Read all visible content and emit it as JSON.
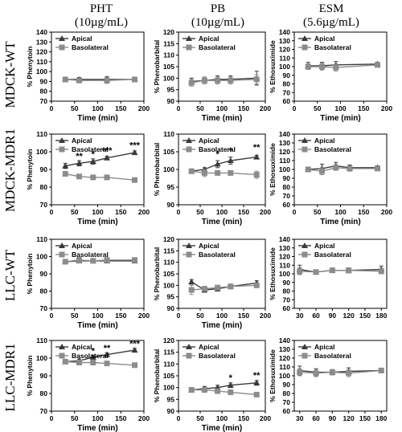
{
  "colors": {
    "apical": "#3a3a3a",
    "basolateral": "#8c8c8c",
    "axis": "#000000"
  },
  "columns": [
    {
      "drug": "PHT",
      "conc": "(10µg/mL)"
    },
    {
      "drug": "PB",
      "conc": "(10µg/mL)"
    },
    {
      "drug": "ESM",
      "conc": "(5.6µg/mL)"
    }
  ],
  "rows": [
    "MDCK-WT",
    "MDCK-MDR1",
    "LLC-WT",
    "LLC-MDR1"
  ],
  "chart_data": [
    {
      "type": "line",
      "row": 0,
      "col": 0,
      "ylabel": "% Phenytoin",
      "xlabel": "Time (min)",
      "xlim": [
        0,
        200
      ],
      "ylim": [
        70,
        140
      ],
      "xticks": [
        0,
        50,
        100,
        150,
        200
      ],
      "yticks": [
        70,
        80,
        90,
        100,
        110,
        120,
        130,
        140
      ],
      "legend": "top-left",
      "series": [
        {
          "name": "Apical",
          "marker": "triangle",
          "x": [
            30,
            60,
            120,
            180
          ],
          "y": [
            92,
            92,
            92,
            92
          ],
          "err": [
            2,
            2,
            3,
            1.5
          ]
        },
        {
          "name": "Basolateral",
          "marker": "square",
          "x": [
            30,
            60,
            120,
            180
          ],
          "y": [
            92,
            91,
            91,
            92
          ],
          "err": [
            2,
            2,
            3,
            1
          ]
        }
      ],
      "annotations": []
    },
    {
      "type": "line",
      "row": 0,
      "col": 1,
      "ylabel": "% Phenobarbital",
      "xlabel": "Time (min)",
      "xlim": [
        0,
        200
      ],
      "ylim": [
        90,
        120
      ],
      "xticks": [
        0,
        50,
        100,
        150,
        200
      ],
      "yticks": [
        90,
        95,
        100,
        105,
        110,
        115,
        120
      ],
      "legend": "top-left",
      "series": [
        {
          "name": "Apical",
          "marker": "triangle",
          "x": [
            30,
            60,
            90,
            120,
            180
          ],
          "y": [
            98.5,
            99,
            99.5,
            99.5,
            100
          ],
          "err": [
            1.5,
            1.5,
            1.5,
            1.5,
            3
          ]
        },
        {
          "name": "Basolateral",
          "marker": "square",
          "x": [
            30,
            60,
            90,
            120,
            180
          ],
          "y": [
            98,
            99,
            99,
            99,
            99.5
          ],
          "err": [
            1.5,
            1.5,
            1.5,
            1.5,
            2
          ]
        }
      ],
      "annotations": []
    },
    {
      "type": "line",
      "row": 0,
      "col": 2,
      "ylabel": "% Ethosuximide",
      "xlabel": "Time (min)",
      "xlim": [
        0,
        200
      ],
      "ylim": [
        60,
        140
      ],
      "xticks": [
        0,
        50,
        100,
        150,
        200
      ],
      "yticks": [
        60,
        70,
        80,
        90,
        100,
        110,
        120,
        130,
        140
      ],
      "legend": "top-left",
      "series": [
        {
          "name": "Apical",
          "marker": "triangle",
          "x": [
            30,
            60,
            90,
            180
          ],
          "y": [
            101,
            101,
            102,
            103
          ],
          "err": [
            4,
            4,
            4,
            2
          ]
        },
        {
          "name": "Basolateral",
          "marker": "square",
          "x": [
            30,
            60,
            90,
            180
          ],
          "y": [
            100,
            100,
            99,
            102
          ],
          "err": [
            3,
            4,
            4,
            2
          ]
        }
      ],
      "annotations": []
    },
    {
      "type": "line",
      "row": 1,
      "col": 0,
      "ylabel": "% Phenytoin",
      "xlabel": "Time (min)",
      "xlim": [
        0,
        200
      ],
      "ylim": [
        70,
        110
      ],
      "xticks": [
        0,
        50,
        100,
        150,
        200
      ],
      "yticks": [
        70,
        80,
        90,
        100,
        110
      ],
      "legend": "top-left",
      "series": [
        {
          "name": "Apical",
          "marker": "triangle",
          "x": [
            30,
            60,
            90,
            120,
            180
          ],
          "y": [
            92,
            93.5,
            94.5,
            96.5,
            99.5
          ],
          "err": [
            1.5,
            1.5,
            1.5,
            1,
            1
          ]
        },
        {
          "name": "Basolateral",
          "marker": "square",
          "x": [
            30,
            60,
            90,
            120,
            180
          ],
          "y": [
            87.5,
            86,
            85.5,
            85.5,
            84
          ],
          "err": [
            1,
            0.5,
            0.5,
            0.5,
            1
          ]
        }
      ],
      "annotations": [
        {
          "x": 60,
          "y": 96,
          "text": "**"
        },
        {
          "x": 90,
          "y": 97,
          "text": "*"
        },
        {
          "x": 120,
          "y": 99,
          "text": "***"
        },
        {
          "x": 180,
          "y": 102,
          "text": "***"
        }
      ]
    },
    {
      "type": "line",
      "row": 1,
      "col": 1,
      "ylabel": "% Phenobarbital",
      "xlabel": "Time (min)",
      "xlim": [
        0,
        200
      ],
      "ylim": [
        90,
        110
      ],
      "xticks": [
        0,
        50,
        100,
        150,
        200
      ],
      "yticks": [
        90,
        95,
        100,
        105,
        110
      ],
      "legend": "top-left",
      "series": [
        {
          "name": "Apical",
          "marker": "triangle",
          "x": [
            30,
            60,
            90,
            120,
            180
          ],
          "y": [
            99.5,
            100,
            101.5,
            102.5,
            103.5
          ],
          "err": [
            0.5,
            0.5,
            1,
            1,
            0.5
          ]
        },
        {
          "name": "Basolateral",
          "marker": "square",
          "x": [
            30,
            60,
            90,
            120,
            180
          ],
          "y": [
            99.5,
            99,
            99,
            99,
            98.5
          ],
          "err": [
            0.5,
            1,
            0.5,
            0.5,
            1
          ]
        }
      ],
      "annotations": [
        {
          "x": 90,
          "y": 103.5,
          "text": "*"
        },
        {
          "x": 120,
          "y": 104.5,
          "text": "*"
        },
        {
          "x": 180,
          "y": 105.5,
          "text": "**"
        }
      ]
    },
    {
      "type": "line",
      "row": 1,
      "col": 2,
      "ylabel": "% Ethosuximide",
      "xlabel": "Time (min)",
      "xlim": [
        0,
        200
      ],
      "ylim": [
        60,
        140
      ],
      "xticks": [
        0,
        50,
        100,
        150,
        200
      ],
      "yticks": [
        60,
        70,
        80,
        90,
        100,
        110,
        120,
        130,
        140
      ],
      "legend": "top-left",
      "series": [
        {
          "name": "Apical",
          "marker": "triangle",
          "x": [
            30,
            60,
            90,
            120,
            180
          ],
          "y": [
            100,
            101,
            104,
            102,
            102
          ],
          "err": [
            2,
            5,
            4,
            3,
            2
          ]
        },
        {
          "name": "Basolateral",
          "marker": "square",
          "x": [
            30,
            60,
            90,
            120,
            180
          ],
          "y": [
            100,
            98,
            102,
            101,
            101
          ],
          "err": [
            2,
            4,
            3,
            3,
            2
          ]
        }
      ],
      "annotations": []
    },
    {
      "type": "line",
      "row": 2,
      "col": 0,
      "ylabel": "% Phenytoin",
      "xlabel": "Time (min)",
      "xlim": [
        0,
        200
      ],
      "ylim": [
        70,
        110
      ],
      "xticks": [
        0,
        50,
        100,
        150,
        200
      ],
      "yticks": [
        70,
        80,
        90,
        100,
        110
      ],
      "legend": "top-left",
      "series": [
        {
          "name": "Apical",
          "marker": "triangle",
          "x": [
            30,
            60,
            90,
            120,
            180
          ],
          "y": [
            97,
            97.5,
            97.5,
            97.5,
            97.5
          ],
          "err": [
            1,
            1,
            1,
            1,
            1
          ]
        },
        {
          "name": "Basolateral",
          "marker": "square",
          "x": [
            30,
            60,
            90,
            120,
            180
          ],
          "y": [
            97,
            98,
            97.5,
            98,
            98
          ],
          "err": [
            1,
            1.5,
            1,
            1,
            1
          ]
        }
      ],
      "annotations": []
    },
    {
      "type": "line",
      "row": 2,
      "col": 1,
      "ylabel": "% Phenobarbital",
      "xlabel": "Time (min)",
      "xlim": [
        0,
        200
      ],
      "ylim": [
        90,
        120
      ],
      "xticks": [
        0,
        50,
        100,
        150,
        200
      ],
      "yticks": [
        90,
        95,
        100,
        105,
        110,
        115,
        120
      ],
      "legend": "top-left",
      "series": [
        {
          "name": "Apical",
          "marker": "triangle",
          "x": [
            30,
            60,
            90,
            120,
            180
          ],
          "y": [
            101.5,
            98,
            98.5,
            99.5,
            101
          ],
          "err": [
            1,
            1,
            1,
            1,
            1
          ]
        },
        {
          "name": "Basolateral",
          "marker": "square",
          "x": [
            30,
            60,
            90,
            120,
            180
          ],
          "y": [
            98,
            98.5,
            99,
            99.5,
            100
          ],
          "err": [
            2,
            1,
            1,
            1,
            1
          ]
        }
      ],
      "annotations": []
    },
    {
      "type": "line",
      "row": 2,
      "col": 2,
      "ylabel": "% Ethosuximide",
      "xlabel": "",
      "xlim": [
        20,
        190
      ],
      "ylim": [
        60,
        140
      ],
      "xticks": [
        30,
        60,
        90,
        120,
        150,
        180
      ],
      "yticks": [
        60,
        70,
        80,
        90,
        100,
        110,
        120,
        130,
        140
      ],
      "legend": "top-left",
      "series": [
        {
          "name": "Apical",
          "marker": "triangle",
          "x": [
            30,
            60,
            90,
            120,
            180
          ],
          "y": [
            105,
            102,
            104,
            104,
            105
          ],
          "err": [
            5,
            2,
            2,
            3,
            4
          ]
        },
        {
          "name": "Basolateral",
          "marker": "square",
          "x": [
            30,
            60,
            90,
            120,
            180
          ],
          "y": [
            103,
            102,
            104,
            104,
            103
          ],
          "err": [
            4,
            2,
            2,
            3,
            3
          ]
        }
      ],
      "annotations": []
    },
    {
      "type": "line",
      "row": 3,
      "col": 0,
      "ylabel": "% Phenytoin",
      "xlabel": "Time (min)",
      "xlim": [
        0,
        200
      ],
      "ylim": [
        70,
        110
      ],
      "xticks": [
        0,
        50,
        100,
        150,
        200
      ],
      "yticks": [
        70,
        80,
        90,
        100,
        110
      ],
      "legend": "top-left",
      "series": [
        {
          "name": "Apical",
          "marker": "triangle",
          "x": [
            30,
            60,
            90,
            120,
            180
          ],
          "y": [
            98,
            98.5,
            100.5,
            102,
            104.5
          ],
          "err": [
            1,
            1,
            1,
            1,
            1
          ]
        },
        {
          "name": "Basolateral",
          "marker": "square",
          "x": [
            30,
            60,
            90,
            120,
            180
          ],
          "y": [
            98,
            97.5,
            97.5,
            97,
            96
          ],
          "err": [
            1,
            1,
            0.5,
            0.5,
            0.5
          ]
        }
      ],
      "annotations": [
        {
          "x": 90,
          "y": 102.5,
          "text": "*"
        },
        {
          "x": 120,
          "y": 104,
          "text": "**"
        },
        {
          "x": 180,
          "y": 106.5,
          "text": "***"
        }
      ]
    },
    {
      "type": "line",
      "row": 3,
      "col": 1,
      "ylabel": "% Phenobarbital",
      "xlabel": "Time (min)",
      "xlim": [
        0,
        200
      ],
      "ylim": [
        90,
        120
      ],
      "xticks": [
        0,
        50,
        100,
        150,
        200
      ],
      "yticks": [
        90,
        95,
        100,
        105,
        110,
        115,
        120
      ],
      "legend": "top-left",
      "series": [
        {
          "name": "Apical",
          "marker": "triangle",
          "x": [
            30,
            60,
            90,
            120,
            180
          ],
          "y": [
            99,
            99.5,
            100,
            101,
            102
          ],
          "err": [
            1,
            1,
            1,
            1,
            1
          ]
        },
        {
          "name": "Basolateral",
          "marker": "square",
          "x": [
            30,
            60,
            90,
            120,
            180
          ],
          "y": [
            99,
            99,
            98.5,
            98,
            97
          ],
          "err": [
            1,
            1,
            1,
            0.5,
            0.5
          ]
        }
      ],
      "annotations": [
        {
          "x": 120,
          "y": 103,
          "text": "*"
        },
        {
          "x": 180,
          "y": 104,
          "text": "**"
        }
      ]
    },
    {
      "type": "line",
      "row": 3,
      "col": 2,
      "ylabel": "% Ethosuximide",
      "xlabel": "",
      "xlim": [
        20,
        190
      ],
      "ylim": [
        60,
        140
      ],
      "xticks": [
        30,
        60,
        90,
        120,
        150,
        180
      ],
      "yticks": [
        60,
        70,
        80,
        90,
        100,
        110,
        120,
        130,
        140
      ],
      "legend": "top-left",
      "series": [
        {
          "name": "Apical",
          "marker": "triangle",
          "x": [
            30,
            60,
            90,
            120,
            180
          ],
          "y": [
            106,
            104,
            104,
            105,
            106
          ],
          "err": [
            5,
            4,
            3,
            4,
            2
          ]
        },
        {
          "name": "Basolateral",
          "marker": "square",
          "x": [
            30,
            60,
            90,
            120,
            180
          ],
          "y": [
            104,
            103,
            104,
            103,
            106
          ],
          "err": [
            4,
            4,
            3,
            4,
            2
          ]
        }
      ],
      "annotations": []
    }
  ]
}
